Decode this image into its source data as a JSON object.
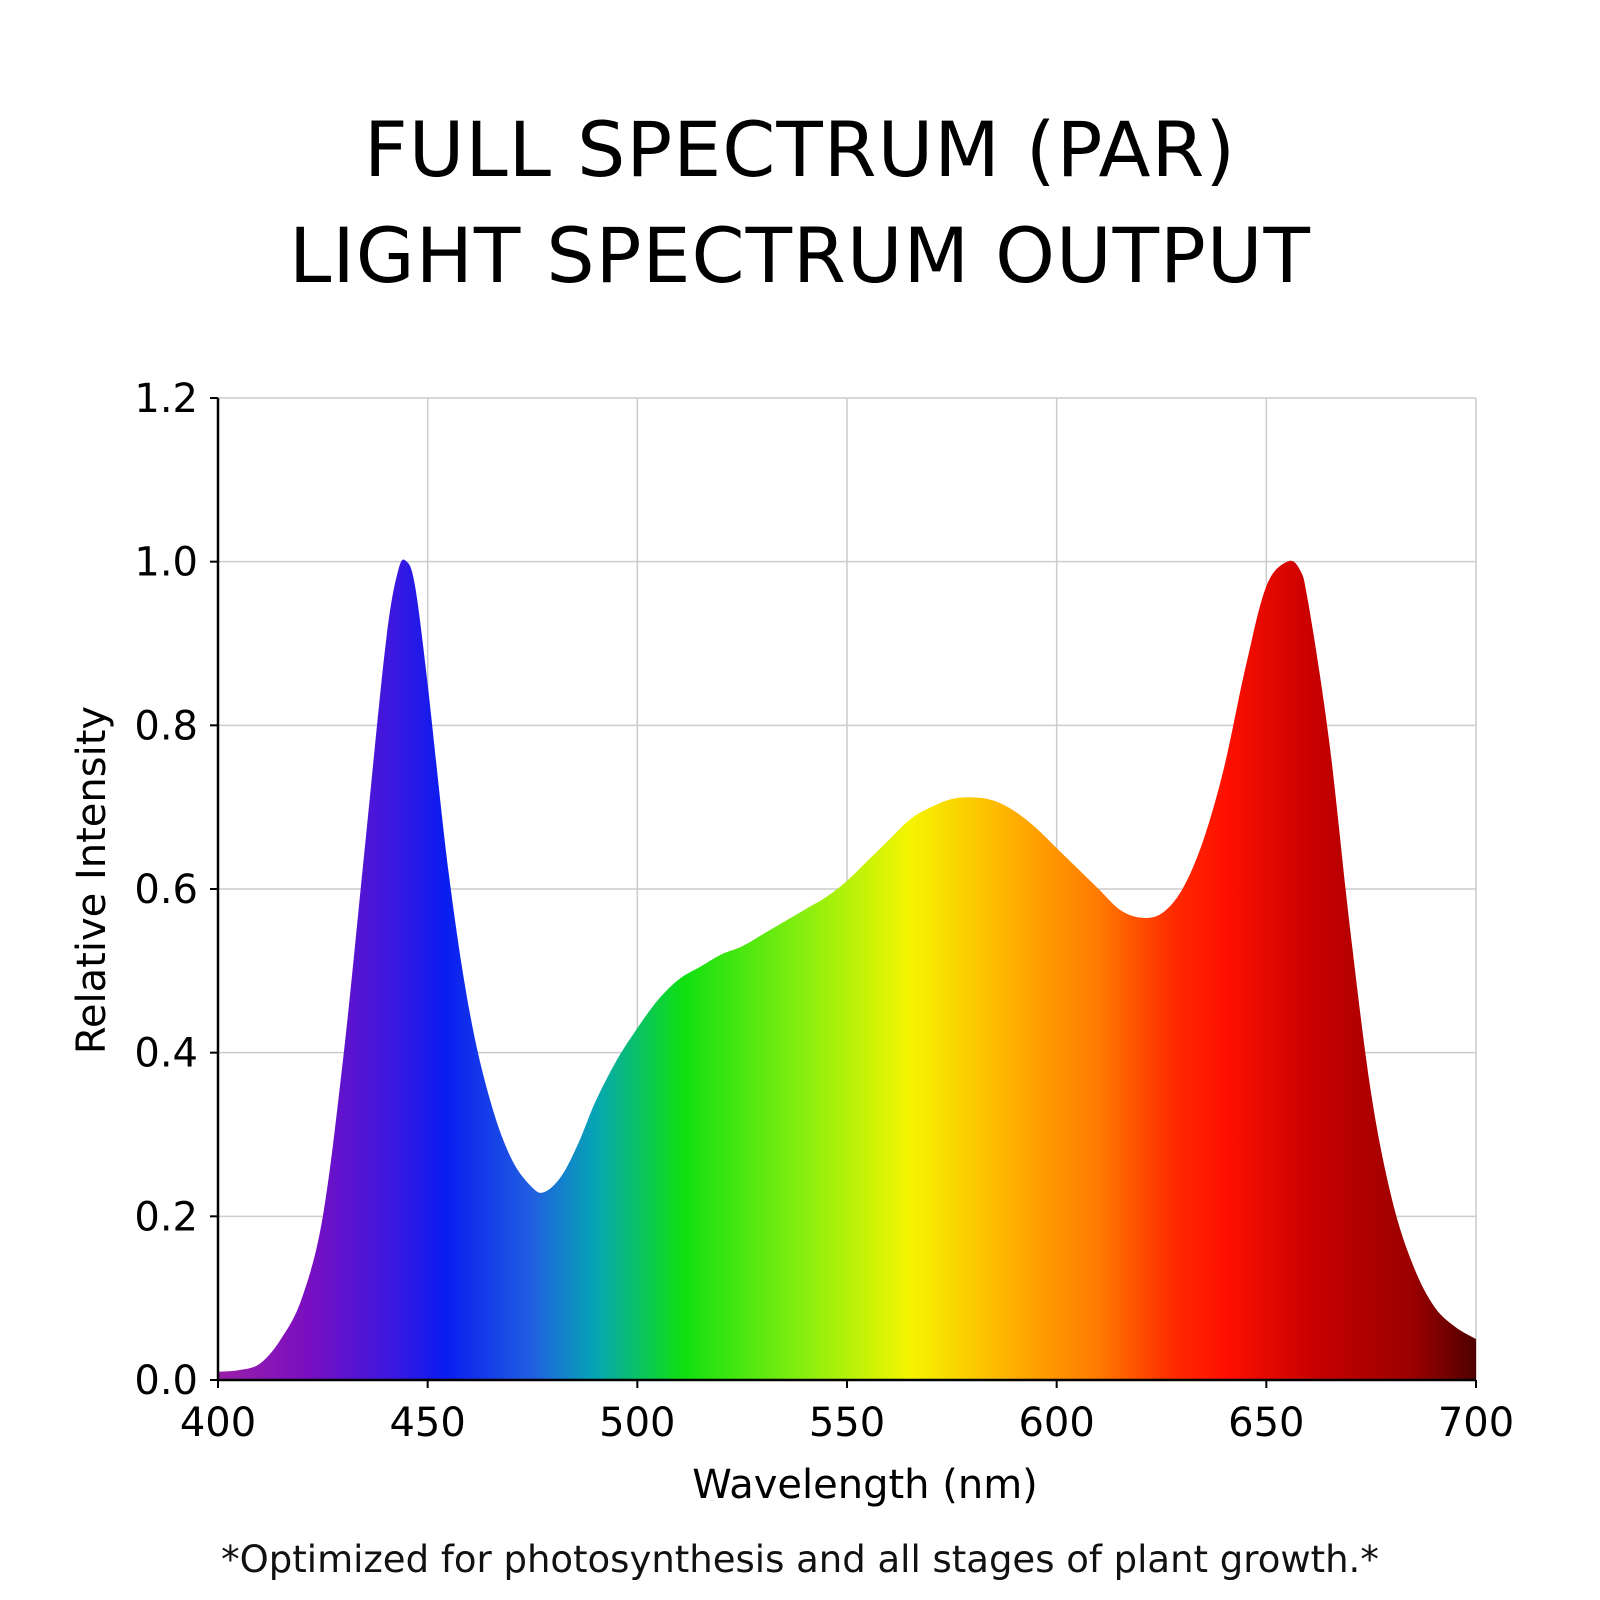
{
  "title_line1": "FULL SPECTRUM (PAR)",
  "title_line2": "LIGHT SPECTRUM OUTPUT",
  "footnote": "*Optimized for photosynthesis and all stages of plant growth.*",
  "chart_data": {
    "type": "area",
    "xlabel": "Wavelength (nm)",
    "ylabel": "Relative Intensity",
    "xlim": [
      400,
      700
    ],
    "ylim": [
      0,
      1.2
    ],
    "x_ticks": [
      "400",
      "450",
      "500",
      "550",
      "600",
      "650",
      "700"
    ],
    "y_ticks": [
      "0.0",
      "0.2",
      "0.4",
      "0.6",
      "0.8",
      "1.0",
      "1.2"
    ],
    "grid": true,
    "x": [
      400,
      405,
      410,
      415,
      420,
      425,
      430,
      435,
      440,
      443,
      445,
      447,
      450,
      455,
      460,
      465,
      470,
      475,
      478,
      482,
      486,
      490,
      495,
      500,
      505,
      510,
      515,
      520,
      525,
      530,
      535,
      540,
      545,
      550,
      555,
      560,
      565,
      570,
      575,
      580,
      585,
      590,
      595,
      600,
      605,
      610,
      615,
      620,
      625,
      630,
      635,
      640,
      645,
      650,
      655,
      658,
      660,
      665,
      670,
      675,
      680,
      685,
      690,
      695,
      700
    ],
    "y": [
      0.01,
      0.012,
      0.02,
      0.05,
      0.1,
      0.2,
      0.4,
      0.65,
      0.9,
      0.99,
      1.0,
      0.97,
      0.85,
      0.62,
      0.45,
      0.34,
      0.27,
      0.235,
      0.23,
      0.25,
      0.29,
      0.34,
      0.39,
      0.43,
      0.465,
      0.49,
      0.505,
      0.52,
      0.53,
      0.545,
      0.56,
      0.575,
      0.59,
      0.61,
      0.635,
      0.66,
      0.685,
      0.7,
      0.71,
      0.712,
      0.708,
      0.695,
      0.675,
      0.65,
      0.625,
      0.6,
      0.575,
      0.565,
      0.57,
      0.6,
      0.66,
      0.75,
      0.87,
      0.97,
      1.0,
      0.99,
      0.95,
      0.78,
      0.55,
      0.35,
      0.22,
      0.14,
      0.09,
      0.065,
      0.05
    ],
    "colors": {
      "violet": "#7a0fc0",
      "blue": "#0a1cf0",
      "green": "#10e010",
      "yellow": "#f5f500",
      "orange": "#ff8c00",
      "red": "#ff1200",
      "dark_red": "#5a0000",
      "grid": "#cccccc",
      "axis": "#000000"
    }
  }
}
